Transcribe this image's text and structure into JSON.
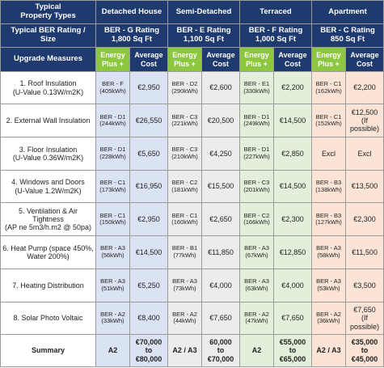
{
  "table": {
    "header": {
      "row1": {
        "label": "Typical\nProperty Types",
        "types": [
          "Detached House",
          "Semi-Detached",
          "Terraced",
          "Apartment"
        ]
      },
      "row2": {
        "label": "Typical BER Rating / Size",
        "ratings": [
          "BER - G Rating\n1,800 Sq Ft",
          "BER - E Rating\n1,100 Sq Ft",
          "BER - F Rating\n1,000 Sq Ft",
          "BER - C Rating\n850 Sq Ft"
        ]
      },
      "row3": {
        "label": "Upgrade Measures",
        "columns": [
          "Energy\nPlus +",
          "Average\nCost",
          "Energy\nPlus +",
          "Average\nCost",
          "Energy\nPlus +",
          "Average\nCost",
          "Energy\nPlus +",
          "Average\nCost"
        ]
      }
    },
    "rows": [
      {
        "measure": "1. Roof Insulation\n(U-Value 0.13W/m2K)",
        "cells": [
          "BER - F\n(405kWh)",
          "€2,950",
          "BER - D2\n(290kWh)",
          "€2,600",
          "BER - E1\n(330kWh)",
          "€2,200",
          "BER - C1\n(162kWh)",
          "€2,200"
        ]
      },
      {
        "measure": "2. External Wall Insulation",
        "cells": [
          "BER - D1\n(244kWh)",
          "€26,550",
          "BER - C3\n(221kWh)",
          "€20,500",
          "BER - D1\n(249kWh)",
          "€14,500",
          "BER - C1\n(152kWh)",
          "€12,500\n(If possible)"
        ]
      },
      {
        "measure": "3. Floor Insulation\n(U-Value 0.36W/m2K)",
        "cells": [
          "BER - D1\n(228kWh)",
          "€5,650",
          "BER - C3\n(210kWh)",
          "€4,250",
          "BER - D1\n(227kWh)",
          "€2,850",
          "Excl",
          "Excl"
        ]
      },
      {
        "measure": "4. Windows and Doors\n(U-Value 1.2W/m2K)",
        "cells": [
          "BER - C1\n(173kWh)",
          "€16,950",
          "BER - C2\n(181kWh)",
          "€15,500",
          "BER - C3\n(201kWh)",
          "€14,500",
          "BER - B3\n(138kWh)",
          "€13,500"
        ]
      },
      {
        "measure": "5. Ventilation & Air Tightness\n(AP ne 5m3/h.m2 @ 50pa)",
        "cells": [
          "BER - C1\n(150kWh)",
          "€2,950",
          "BER - C1\n(160kWh)",
          "€2,650",
          "BER - C2\n(166kWh)",
          "€2,300",
          "BER - B3\n(127kWh)",
          "€2,300"
        ]
      },
      {
        "measure": "6. Heat Pump (space 450%,\nWater 200%)",
        "cells": [
          "BER - A3\n(56kWh)",
          "€14,500",
          "BER - B1\n(77kWh)",
          "€11,850",
          "BER - A3\n(67kWh)",
          "€12,850",
          "BER - A3\n(58kWh)",
          "€11,500"
        ]
      },
      {
        "measure": "7. Heating Distribution",
        "cells": [
          "BER - A3\n(51kWh)",
          "€5,250",
          "BER - A3\n(73kWh)",
          "€4,000",
          "BER - A3\n(63kWh)",
          "€4,000",
          "BER - A3\n(53kWh)",
          "€3,500"
        ]
      },
      {
        "measure": "8. Solar Photo Voltaic",
        "cells": [
          "BER - A2\n(33kWh)",
          "€8,400",
          "BER - A2\n(44kWh)",
          "€7,650",
          "BER - A2\n(47kWh)",
          "€7,650",
          "BER - A2\n(36kWh)",
          "€7,650\n(If possible)"
        ]
      }
    ],
    "summary": {
      "label": "Summary",
      "cells": [
        "A2",
        "€70,000\nto\n€80,000",
        "A2 / A3",
        "60,000\nto\n€70,000",
        "A2",
        "€55,000\nto\n€65,000",
        "A2 / A3",
        "€35,000\nto\n€45,000"
      ]
    }
  }
}
